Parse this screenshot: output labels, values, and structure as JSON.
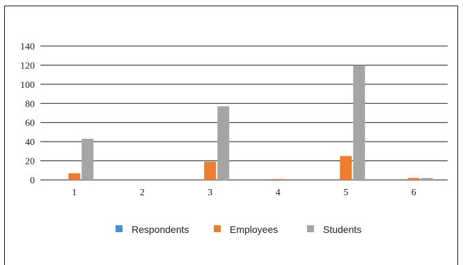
{
  "chart_data": {
    "type": "bar",
    "categories": [
      "1",
      "2",
      "3",
      "4",
      "5",
      "6"
    ],
    "series": [
      {
        "name": "Respondents",
        "color": "#4a90d9",
        "values": [
          0,
          0,
          0,
          0,
          0,
          0
        ]
      },
      {
        "name": "Employees",
        "color": "#ed7d31",
        "values": [
          7,
          0,
          19,
          1,
          25,
          2
        ]
      },
      {
        "name": "Students",
        "color": "#a5a5a5",
        "values": [
          43,
          0,
          77,
          0,
          120,
          2
        ]
      }
    ],
    "y_ticks": [
      "0",
      "20",
      "40",
      "60",
      "80",
      "100",
      "120",
      "140"
    ],
    "ylim": [
      0,
      140
    ],
    "grid": true,
    "legend_position": "bottom"
  }
}
